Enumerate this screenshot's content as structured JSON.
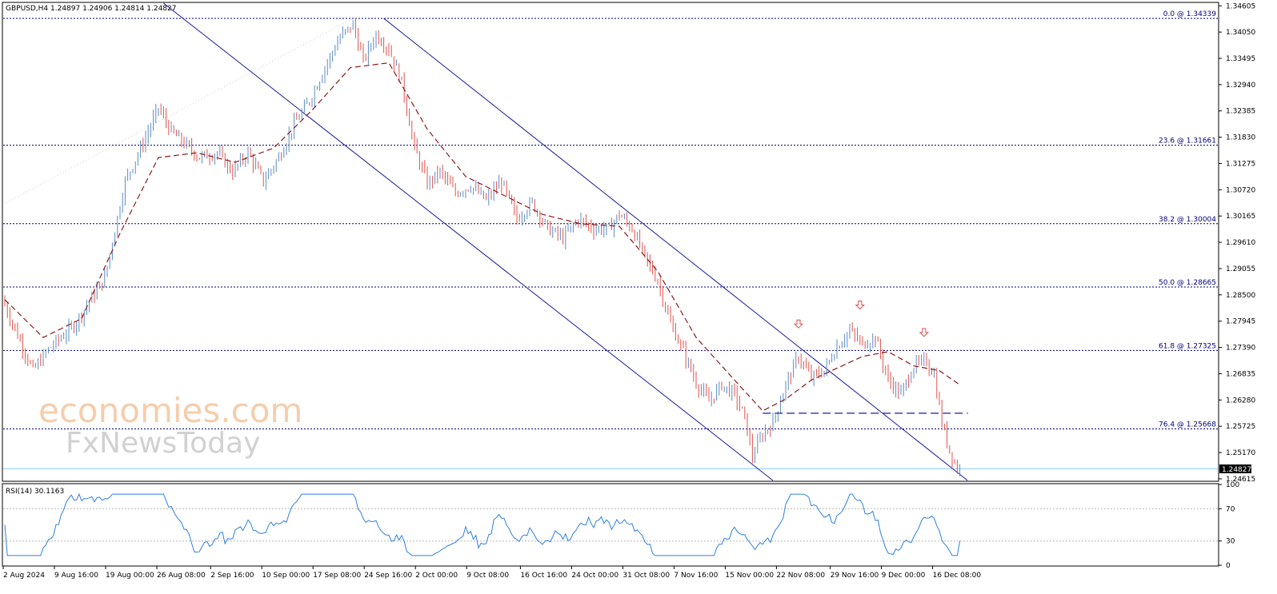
{
  "header": {
    "symbol_line": "GBPUSD,H4  1.24897 1.24906 1.24814 1.24827"
  },
  "watermark": {
    "line1": "economies.com",
    "line2": "FxNewsToday"
  },
  "colors": {
    "bull": "#5b8cc4",
    "bear": "#e0534c",
    "ma": "#8b1a1a",
    "channel": "#1c1c9e",
    "fib": "#000080",
    "rsi": "#2f80e0",
    "price_line": "#87cefa"
  },
  "chart_data": {
    "type": "candlestick",
    "price_axis": {
      "ticks": [
        "1.34605",
        "1.34050",
        "1.33495",
        "1.32940",
        "1.32385",
        "1.31830",
        "1.31275",
        "1.30720",
        "1.30165",
        "1.29610",
        "1.29055",
        "1.28500",
        "1.27945",
        "1.27390",
        "1.26835",
        "1.26280",
        "1.25725",
        "1.25170",
        "1.24615"
      ],
      "range": [
        1.2458,
        1.3466
      ],
      "current_price": "1.24827"
    },
    "time_axis": {
      "labels": [
        "2 Aug 2024",
        "9 Aug 16:00",
        "19 Aug 00:00",
        "26 Aug 08:00",
        "2 Sep 16:00",
        "10 Sep 00:00",
        "17 Sep 08:00",
        "24 Sep 16:00",
        "2 Oct 00:00",
        "9 Oct 08:00",
        "16 Oct 16:00",
        "24 Oct 00:00",
        "31 Oct 08:00",
        "7 Nov 16:00",
        "15 Nov 00:00",
        "22 Nov 08:00",
        "29 Nov 16:00",
        "9 Dec 00:00",
        "16 Dec 08:00"
      ]
    },
    "fibonacci": [
      {
        "label": "0.0 @ 1.34339",
        "price": 1.34339
      },
      {
        "label": "23.6 @ 1.31661",
        "price": 1.31661
      },
      {
        "label": "38.2 @ 1.30004",
        "price": 1.30004
      },
      {
        "label": "50.0 @ 1.28665",
        "price": 1.28665
      },
      {
        "label": "61.8 @ 1.27325",
        "price": 1.27325
      },
      {
        "label": "76.4 @ 1.25668",
        "price": 1.25668
      }
    ],
    "path_points": [
      [
        0,
        1.284
      ],
      [
        12,
        1.269
      ],
      [
        18,
        1.2735
      ],
      [
        28,
        1.2785
      ],
      [
        40,
        1.2885
      ],
      [
        48,
        1.309
      ],
      [
        55,
        1.317
      ],
      [
        61,
        1.3245
      ],
      [
        66,
        1.3195
      ],
      [
        72,
        1.3165
      ],
      [
        77,
        1.314
      ],
      [
        84,
        1.315
      ],
      [
        90,
        1.311
      ],
      [
        96,
        1.315
      ],
      [
        102,
        1.309
      ],
      [
        108,
        1.314
      ],
      [
        114,
        1.321
      ],
      [
        120,
        1.326
      ],
      [
        126,
        1.333
      ],
      [
        132,
        1.3395
      ],
      [
        137,
        1.342
      ],
      [
        141,
        1.3345
      ],
      [
        146,
        1.34
      ],
      [
        151,
        1.337
      ],
      [
        156,
        1.33
      ],
      [
        161,
        1.316
      ],
      [
        166,
        1.3085
      ],
      [
        171,
        1.311
      ],
      [
        177,
        1.3065
      ],
      [
        183,
        1.308
      ],
      [
        189,
        1.305
      ],
      [
        195,
        1.309
      ],
      [
        201,
        1.301
      ],
      [
        207,
        1.3045
      ],
      [
        213,
        1.299
      ],
      [
        219,
        1.297
      ],
      [
        225,
        1.301
      ],
      [
        231,
        1.299
      ],
      [
        237,
        1.299
      ],
      [
        241,
        1.302
      ],
      [
        246,
        1.299
      ],
      [
        251,
        1.293
      ],
      [
        256,
        1.288
      ],
      [
        261,
        1.279
      ],
      [
        266,
        1.273
      ],
      [
        271,
        1.2665
      ],
      [
        276,
        1.2625
      ],
      [
        281,
        1.266
      ],
      [
        286,
        1.264
      ],
      [
        290,
        1.259
      ],
      [
        293,
        1.251
      ],
      [
        297,
        1.2555
      ],
      [
        301,
        1.258
      ],
      [
        306,
        1.266
      ],
      [
        311,
        1.272
      ],
      [
        316,
        1.2675
      ],
      [
        321,
        1.269
      ],
      [
        326,
        1.274
      ],
      [
        331,
        1.2775
      ],
      [
        336,
        1.2745
      ],
      [
        341,
        1.276
      ],
      [
        346,
        1.267
      ],
      [
        351,
        1.264
      ],
      [
        356,
        1.27
      ],
      [
        361,
        1.271
      ],
      [
        364,
        1.268
      ],
      [
        367,
        1.258
      ],
      [
        370,
        1.252
      ],
      [
        373,
        1.24827
      ]
    ],
    "moving_average_points": [
      [
        0,
        1.284
      ],
      [
        15,
        1.276
      ],
      [
        30,
        1.28
      ],
      [
        45,
        1.298
      ],
      [
        60,
        1.314
      ],
      [
        75,
        1.315
      ],
      [
        90,
        1.313
      ],
      [
        105,
        1.316
      ],
      [
        120,
        1.324
      ],
      [
        135,
        1.333
      ],
      [
        150,
        1.334
      ],
      [
        165,
        1.32
      ],
      [
        180,
        1.31
      ],
      [
        195,
        1.306
      ],
      [
        210,
        1.302
      ],
      [
        225,
        1.3
      ],
      [
        240,
        1.2995
      ],
      [
        255,
        1.29
      ],
      [
        270,
        1.276
      ],
      [
        285,
        1.267
      ],
      [
        296,
        1.2605
      ],
      [
        305,
        1.263
      ],
      [
        315,
        1.267
      ],
      [
        325,
        1.2695
      ],
      [
        335,
        1.272
      ],
      [
        345,
        1.273
      ],
      [
        355,
        1.27
      ],
      [
        365,
        1.269
      ],
      [
        373,
        1.266
      ]
    ],
    "rsi": {
      "label": "RSI(14) 30.1163",
      "levels": [
        "100",
        "70",
        "30",
        "0"
      ],
      "levels_values": [
        100,
        70,
        30,
        0
      ],
      "last_value": 30.1163
    },
    "annotations": {
      "channel": "descending",
      "arrows": "three down arrows over the recent swing highs",
      "neckline_price": 1.26
    }
  }
}
